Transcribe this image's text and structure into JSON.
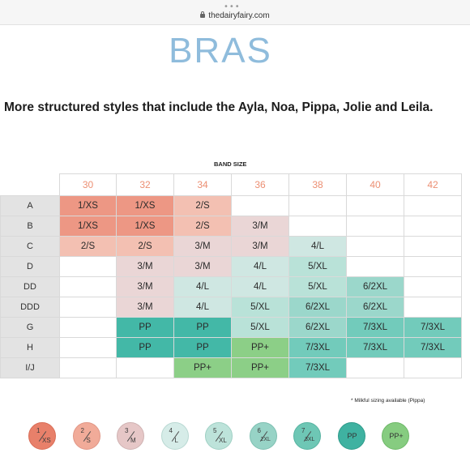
{
  "browser": {
    "more_dots": "•••",
    "url": "thedairyfairy.com"
  },
  "page": {
    "heading": "BRAS",
    "subtitle": "More structured styles that include the Ayla, Noa, Pippa, Jolie and Leila.",
    "band_title": "BAND SIZE",
    "footnote": "* Milkful sizing available (Pippa)"
  },
  "size_chart": {
    "band_sizes": [
      "30",
      "32",
      "34",
      "36",
      "38",
      "40",
      "42"
    ],
    "cup_sizes": [
      "A",
      "B",
      "C",
      "D",
      "DD",
      "DDD",
      "G",
      "H",
      "I/J"
    ],
    "rows": [
      [
        "1/XS",
        "1/XS",
        "2/S",
        "",
        "",
        "",
        ""
      ],
      [
        "1/XS",
        "1/XS",
        "2/S",
        "3/M",
        "",
        "",
        ""
      ],
      [
        "2/S",
        "2/S",
        "3/M",
        "3/M",
        "4/L",
        "",
        ""
      ],
      [
        "",
        "3/M",
        "3/M",
        "4/L",
        "5/XL",
        "",
        ""
      ],
      [
        "",
        "3/M",
        "4/L",
        "4/L",
        "5/XL",
        "6/2XL",
        ""
      ],
      [
        "",
        "3/M",
        "4/L",
        "5/XL",
        "6/2XL",
        "6/2XL",
        ""
      ],
      [
        "",
        "PP",
        "PP",
        "5/XL",
        "6/2XL",
        "7/3XL",
        "7/3XL"
      ],
      [
        "",
        "PP",
        "PP",
        "PP+",
        "7/3XL",
        "7/3XL",
        "7/3XL"
      ],
      [
        "",
        "",
        "PP+",
        "PP+",
        "7/3XL",
        "",
        ""
      ]
    ]
  },
  "colors": {
    "1/XS": "#ed9784",
    "2/S": "#f3c0b2",
    "3/M": "#ead6d6",
    "4/L": "#cfe7e2",
    "5/XL": "#b9e2d8",
    "6/2XL": "#9bd7cb",
    "7/3XL": "#72cbbb",
    "PP": "#43b8a7",
    "PP+": "#8ccf87",
    "empty": "#ffffff",
    "header": "#e3e3e3",
    "band_text": "#ec8f73",
    "heading": "#8fbcdc"
  },
  "legend": [
    {
      "key": "1/XS",
      "num": "1",
      "size": "XS",
      "color": "#e8806a",
      "border": "#d96d57"
    },
    {
      "key": "2/S",
      "num": "2",
      "size": "S",
      "color": "#f1ab99",
      "border": "#e19685"
    },
    {
      "key": "3/M",
      "num": "3",
      "size": "M",
      "color": "#e6c7c7",
      "border": "#cfb2b2"
    },
    {
      "key": "4/L",
      "num": "4",
      "size": "L",
      "color": "#d6ece8",
      "border": "#b8d8d2"
    },
    {
      "key": "5/XL",
      "num": "5",
      "size": "XL",
      "color": "#bde3da",
      "border": "#9fd0c4"
    },
    {
      "key": "6/2XL",
      "num": "6",
      "size": "2XL",
      "color": "#97d3c6",
      "border": "#7dbfb1"
    },
    {
      "key": "7/3XL",
      "num": "7",
      "size": "3XL",
      "color": "#6ec7b5",
      "border": "#57b3a1"
    },
    {
      "key": "PP",
      "label": "PP",
      "color": "#3fb2a1",
      "border": "#2f9b8b"
    },
    {
      "key": "PP+",
      "label": "PP+",
      "color": "#86cc80",
      "border": "#6db867"
    }
  ]
}
